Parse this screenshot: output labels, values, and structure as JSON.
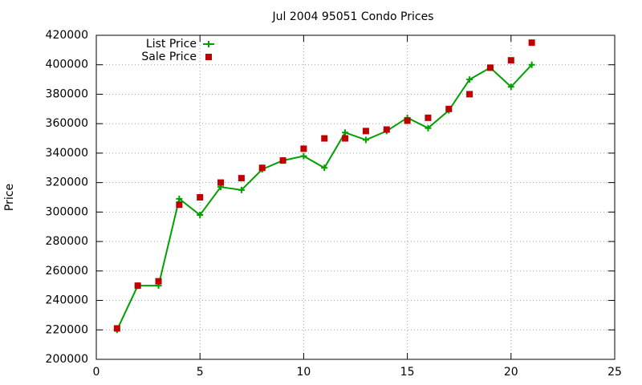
{
  "chart_data": {
    "type": "line",
    "title": "Jul 2004 95051 Condo Prices",
    "y_label": "Price",
    "x": [
      1,
      2,
      3,
      4,
      5,
      6,
      7,
      8,
      9,
      10,
      11,
      12,
      13,
      14,
      15,
      16,
      17,
      18,
      19,
      20,
      21
    ],
    "series": [
      {
        "name": "List Price",
        "color": "#00a000",
        "marker": "plus",
        "line": true,
        "values": [
          220000,
          250000,
          250000,
          309000,
          298000,
          317000,
          315000,
          329000,
          335000,
          338000,
          330000,
          354000,
          349000,
          355000,
          364000,
          357000,
          369000,
          390000,
          398000,
          385000,
          400000
        ]
      },
      {
        "name": "Sale Price",
        "color": "#c00000",
        "marker": "square",
        "line": false,
        "values": [
          221000,
          250000,
          253000,
          305000,
          310000,
          320000,
          323000,
          330000,
          335000,
          343000,
          350000,
          350000,
          355000,
          356000,
          362000,
          364000,
          370000,
          380000,
          398000,
          403000,
          415000
        ]
      }
    ],
    "xlim": [
      0,
      25
    ],
    "xticks": [
      0,
      5,
      10,
      15,
      20,
      25
    ],
    "ylim": [
      200000,
      420000
    ],
    "yticks": [
      200000,
      220000,
      240000,
      260000,
      280000,
      300000,
      320000,
      340000,
      360000,
      380000,
      400000,
      420000
    ],
    "grid": true,
    "legend": "top-left"
  }
}
